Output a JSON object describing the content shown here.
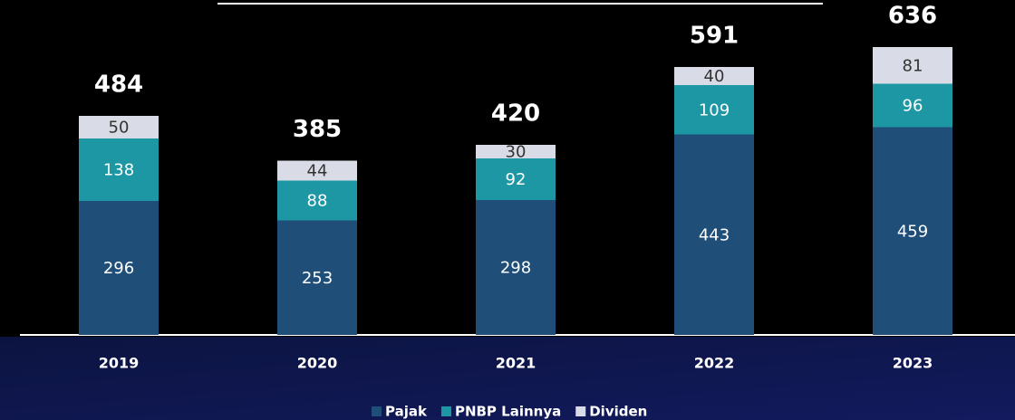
{
  "chart_data": {
    "type": "stacked_bar",
    "categories": [
      "2019",
      "2020",
      "2021",
      "2022",
      "2023"
    ],
    "series": [
      {
        "name": "Pajak",
        "color": "#1f4e79",
        "values": [
          296,
          253,
          298,
          443,
          459
        ]
      },
      {
        "name": "PNBP Lainnya",
        "color": "#1d97a3",
        "values": [
          138,
          88,
          92,
          109,
          96
        ]
      },
      {
        "name": "Dividen",
        "color": "#d9dce6",
        "values": [
          50,
          44,
          30,
          40,
          81
        ]
      }
    ],
    "totals": [
      484,
      385,
      420,
      591,
      636
    ],
    "ylim": [
      0,
      740
    ],
    "legend": "bottom"
  }
}
